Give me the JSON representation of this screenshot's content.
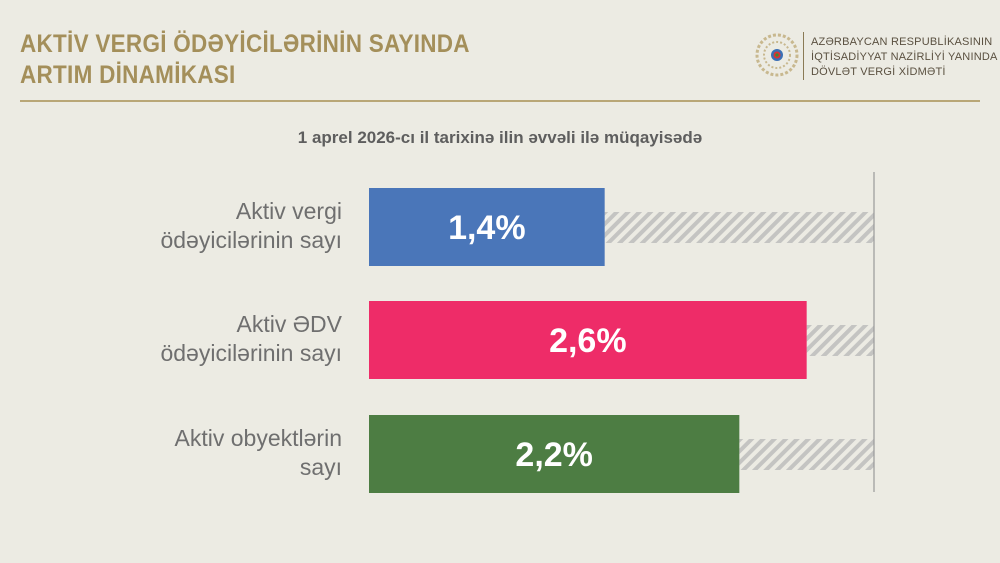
{
  "header": {
    "title_line1": "AKTİV VERGİ ÖDƏYİCİLƏRİNİN SAYINDA",
    "title_line2": "ARTIM DİNAMİKASI"
  },
  "org": {
    "line1": "AZƏRBAYCAN RESPUBLİKASININ",
    "line2": "İQTİSADİYYAT NAZİRLİYİ YANINDA",
    "line3": "DÖVLƏT VERGİ XİDMƏTİ",
    "logo_icon": "state-tax-service-emblem"
  },
  "chart_data": {
    "type": "bar",
    "orientation": "horizontal",
    "title": "1 aprel 2026-cı il tarixinə ilin əvvəli ilə müqayisədə",
    "categories": [
      "Aktiv vergi ödəyicilərinin sayı",
      "Aktiv ƏDV ödəyicilərinin sayı",
      "Aktiv obyektlərin sayı"
    ],
    "cat_lines": [
      [
        "Aktiv vergi",
        "ödəyicilərinin sayı"
      ],
      [
        "Aktiv ƏDV",
        "ödəyicilərinin sayı"
      ],
      [
        "Aktiv obyektlərin",
        "sayı"
      ]
    ],
    "values": [
      1.4,
      2.6,
      2.2
    ],
    "labels": [
      "1,4%",
      "2,6%",
      "2,2%"
    ],
    "colors": [
      "#4a76b9",
      "#ee2c68",
      "#4d7d43"
    ],
    "xlim": [
      0,
      3
    ],
    "remainder_style": "gray-hatched",
    "grid": false
  }
}
